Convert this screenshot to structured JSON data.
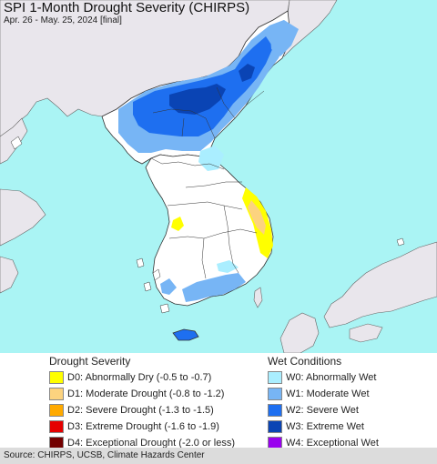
{
  "title": "SPI 1-Month Drought Severity (CHIRPS)",
  "subtitle": "Apr. 26 - May. 25, 2024 [final]",
  "legend": {
    "drought": {
      "heading": "Drought Severity",
      "items": [
        {
          "label": "D0: Abnormally Dry (-0.5 to -0.7)",
          "color": "#ffff00"
        },
        {
          "label": "D1: Moderate Drought (-0.8 to -1.2)",
          "color": "#fcd37f"
        },
        {
          "label": "D2: Severe Drought (-1.3 to -1.5)",
          "color": "#ffaa00"
        },
        {
          "label": "D3: Extreme Drought (-1.6 to -1.9)",
          "color": "#e60000"
        },
        {
          "label": "D4: Exceptional Drought (-2.0 or less)",
          "color": "#730000"
        }
      ]
    },
    "wet": {
      "heading": "Wet Conditions",
      "items": [
        {
          "label": "W0: Abnormally Wet",
          "color": "#aaeeff"
        },
        {
          "label": "W1: Moderate Wet",
          "color": "#77b5f5"
        },
        {
          "label": "W2: Severe Wet",
          "color": "#1e6ff0"
        },
        {
          "label": "W3: Extreme Wet",
          "color": "#0a44b4"
        },
        {
          "label": "W4: Exceptional Wet",
          "color": "#9900ee"
        }
      ]
    }
  },
  "source": "Source: CHIRPS, UCSB, Climate Hazards Center",
  "map_colors": {
    "sea": "#aaf4f4",
    "outside_land": "#e9e6ec",
    "korea_land": "#ffffff",
    "borders": "#333333"
  }
}
